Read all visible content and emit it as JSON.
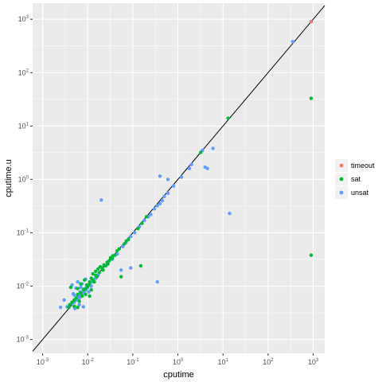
{
  "chart_data": {
    "type": "scatter",
    "x_scale": "log10",
    "y_scale": "log10",
    "xlabel": "cputime",
    "ylabel": "cputime.u",
    "xlim": [
      0.0006,
      1800
    ],
    "ylim": [
      0.00055,
      2000
    ],
    "x_ticks": [
      {
        "value": 0.001,
        "mantissa": "10",
        "exponent": "-3"
      },
      {
        "value": 0.01,
        "mantissa": "10",
        "exponent": "-2"
      },
      {
        "value": 0.1,
        "mantissa": "10",
        "exponent": "-1"
      },
      {
        "value": 1,
        "mantissa": "10",
        "exponent": "0"
      },
      {
        "value": 10,
        "mantissa": "10",
        "exponent": "1"
      },
      {
        "value": 100,
        "mantissa": "10",
        "exponent": "2"
      },
      {
        "value": 1000,
        "mantissa": "10",
        "exponent": "3"
      }
    ],
    "y_ticks": [
      {
        "value": 0.001,
        "mantissa": "10",
        "exponent": "-3"
      },
      {
        "value": 0.01,
        "mantissa": "10",
        "exponent": "-2"
      },
      {
        "value": 0.1,
        "mantissa": "10",
        "exponent": "-1"
      },
      {
        "value": 1,
        "mantissa": "10",
        "exponent": "0"
      },
      {
        "value": 10,
        "mantissa": "10",
        "exponent": "1"
      },
      {
        "value": 100,
        "mantissa": "10",
        "exponent": "2"
      },
      {
        "value": 1000,
        "mantissa": "10",
        "exponent": "3"
      }
    ],
    "grid": true,
    "reference_line": "y = x",
    "legend_position": "right",
    "series": [
      {
        "name": "timeout",
        "color": "#F8766D",
        "points": [
          [
            900,
            900
          ]
        ]
      },
      {
        "name": "sat",
        "color": "#00BA38",
        "points": [
          [
            900,
            33
          ],
          [
            900,
            0.038
          ],
          [
            13,
            14
          ],
          [
            3.2,
            3.2
          ],
          [
            0.15,
            0.024
          ],
          [
            0.055,
            0.015
          ],
          [
            0.2,
            0.2
          ],
          [
            0.16,
            0.15
          ],
          [
            0.13,
            0.12
          ],
          [
            0.08,
            0.075
          ],
          [
            0.072,
            0.07
          ],
          [
            0.065,
            0.062
          ],
          [
            0.05,
            0.05
          ],
          [
            0.04,
            0.038
          ],
          [
            0.03,
            0.03
          ],
          [
            0.025,
            0.024
          ],
          [
            0.022,
            0.02
          ],
          [
            0.018,
            0.018
          ],
          [
            0.016,
            0.015
          ],
          [
            0.015,
            0.016
          ],
          [
            0.013,
            0.013
          ],
          [
            0.012,
            0.014
          ],
          [
            0.011,
            0.011
          ],
          [
            0.01,
            0.01
          ],
          [
            0.0095,
            0.0105
          ],
          [
            0.009,
            0.009
          ],
          [
            0.008,
            0.0085
          ],
          [
            0.007,
            0.0075
          ],
          [
            0.006,
            0.007
          ],
          [
            0.0055,
            0.006
          ],
          [
            0.005,
            0.0055
          ],
          [
            0.0045,
            0.005
          ],
          [
            0.004,
            0.0045
          ],
          [
            0.0038,
            0.004
          ],
          [
            0.0042,
            0.0095
          ],
          [
            0.006,
            0.009
          ],
          [
            0.007,
            0.011
          ],
          [
            0.0085,
            0.013
          ],
          [
            0.011,
            0.012
          ],
          [
            0.013,
            0.017
          ],
          [
            0.015,
            0.019
          ],
          [
            0.017,
            0.021
          ],
          [
            0.019,
            0.023
          ],
          [
            0.021,
            0.022
          ],
          [
            0.027,
            0.028
          ],
          [
            0.032,
            0.034
          ],
          [
            0.036,
            0.037
          ],
          [
            0.045,
            0.046
          ],
          [
            0.006,
            0.004
          ],
          [
            0.005,
            0.0042
          ],
          [
            0.0065,
            0.0052
          ],
          [
            0.012,
            0.0085
          ],
          [
            0.009,
            0.007
          ],
          [
            0.0075,
            0.0065
          ],
          [
            0.014,
            0.012
          ],
          [
            0.023,
            0.025
          ],
          [
            0.028,
            0.026
          ],
          [
            0.035,
            0.033
          ],
          [
            0.011,
            0.0065
          ]
        ]
      },
      {
        "name": "unsat",
        "color": "#619CFF",
        "points": [
          [
            350,
            380
          ],
          [
            6,
            3.8
          ],
          [
            4,
            1.7
          ],
          [
            4.5,
            1.6
          ],
          [
            3.5,
            3.5
          ],
          [
            1.8,
            1.6
          ],
          [
            2,
            1.9
          ],
          [
            1.2,
            1.1
          ],
          [
            0.8,
            0.75
          ],
          [
            0.6,
            0.55
          ],
          [
            0.5,
            0.48
          ],
          [
            0.45,
            0.4
          ],
          [
            0.4,
            0.35
          ],
          [
            0.35,
            0.32
          ],
          [
            0.3,
            0.28
          ],
          [
            0.4,
            1.15
          ],
          [
            0.6,
            1.0
          ],
          [
            0.25,
            0.22
          ],
          [
            0.22,
            0.2
          ],
          [
            0.18,
            0.17
          ],
          [
            0.14,
            0.13
          ],
          [
            0.11,
            0.1
          ],
          [
            0.09,
            0.085
          ],
          [
            0.07,
            0.065
          ],
          [
            0.06,
            0.055
          ],
          [
            0.045,
            0.04
          ],
          [
            0.035,
            0.032
          ],
          [
            0.028,
            0.027
          ],
          [
            0.02,
            0.41
          ],
          [
            0.055,
            0.02
          ],
          [
            0.09,
            0.022
          ],
          [
            0.35,
            0.012
          ],
          [
            14,
            0.23
          ],
          [
            0.017,
            0.016
          ],
          [
            0.015,
            0.014
          ],
          [
            0.013,
            0.012
          ],
          [
            0.012,
            0.01
          ],
          [
            0.011,
            0.0105
          ],
          [
            0.01,
            0.0095
          ],
          [
            0.009,
            0.0085
          ],
          [
            0.0085,
            0.008
          ],
          [
            0.008,
            0.0075
          ],
          [
            0.0075,
            0.007
          ],
          [
            0.007,
            0.0065
          ],
          [
            0.0065,
            0.006
          ],
          [
            0.006,
            0.0058
          ],
          [
            0.0058,
            0.0062
          ],
          [
            0.0055,
            0.0055
          ],
          [
            0.005,
            0.005
          ],
          [
            0.0045,
            0.0048
          ],
          [
            0.004,
            0.0045
          ],
          [
            0.0035,
            0.0041
          ],
          [
            0.0025,
            0.004
          ],
          [
            0.003,
            0.0055
          ],
          [
            0.005,
            0.0068
          ],
          [
            0.0045,
            0.0105
          ],
          [
            0.006,
            0.012
          ],
          [
            0.0075,
            0.011
          ],
          [
            0.009,
            0.0135
          ],
          [
            0.0052,
            0.0038
          ],
          [
            0.0065,
            0.0045
          ],
          [
            0.008,
            0.0041
          ],
          [
            0.0055,
            0.0092
          ],
          [
            0.007,
            0.0095
          ],
          [
            0.0048,
            0.0072
          ],
          [
            0.0068,
            0.0078
          ],
          [
            0.0082,
            0.0088
          ],
          [
            0.0096,
            0.0092
          ],
          [
            0.0105,
            0.0078
          ]
        ]
      }
    ]
  }
}
